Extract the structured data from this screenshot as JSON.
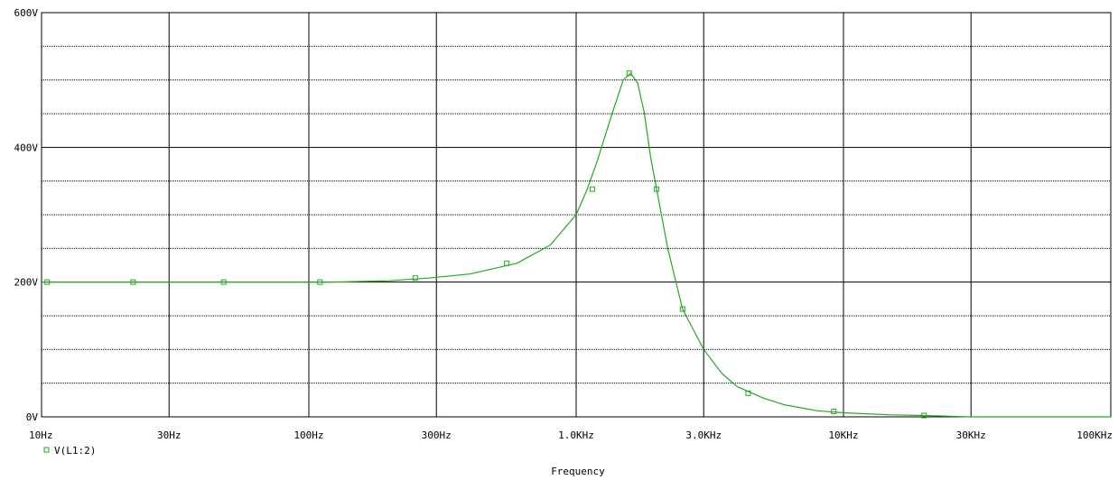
{
  "chart_data": {
    "type": "line",
    "title": "",
    "xlabel": "Frequency",
    "ylabel": "",
    "x_scale": "log",
    "xlim": [
      10,
      100000
    ],
    "ylim": [
      0,
      600
    ],
    "grid": true,
    "x_tick_values": [
      10,
      30,
      100,
      300,
      1000,
      3000,
      10000,
      30000,
      100000
    ],
    "x_tick_labels": [
      "10Hz",
      "30Hz",
      "100Hz",
      "300Hz",
      "1.0KHz",
      "3.0KHz",
      "10KHz",
      "30KHz",
      "100KHz"
    ],
    "y_tick_values": [
      0,
      200,
      400,
      600
    ],
    "y_tick_labels": [
      "0V",
      "200V",
      "400V",
      "600V"
    ],
    "legend_position": "bottom-left",
    "series": [
      {
        "name": "V(L1:2)",
        "color": "#22aa22",
        "marker": "square",
        "x": [
          10,
          20,
          40,
          80,
          120,
          200,
          280,
          400,
          600,
          800,
          1000,
          1100,
          1200,
          1350,
          1500,
          1600,
          1700,
          1800,
          1900,
          2000,
          2200,
          2500,
          3000,
          3500,
          4000,
          5000,
          6000,
          8000,
          10000,
          15000,
          20000,
          25000,
          30000,
          50000,
          100000
        ],
        "y": [
          200,
          200,
          200,
          200,
          200,
          202,
          206,
          212,
          228,
          255,
          300,
          338,
          380,
          445,
          500,
          510,
          495,
          450,
          385,
          338,
          250,
          160,
          100,
          65,
          45,
          28,
          18,
          9,
          6,
          3,
          2,
          1,
          0,
          0,
          0
        ],
        "marker_x": [
          10.5,
          22,
          48,
          110,
          250,
          550,
          1150,
          1580,
          2000,
          2500,
          4400,
          9200,
          20000
        ],
        "marker_y": [
          200,
          200,
          200,
          200,
          206,
          228,
          338,
          510,
          338,
          160,
          35,
          8,
          2
        ]
      }
    ]
  }
}
